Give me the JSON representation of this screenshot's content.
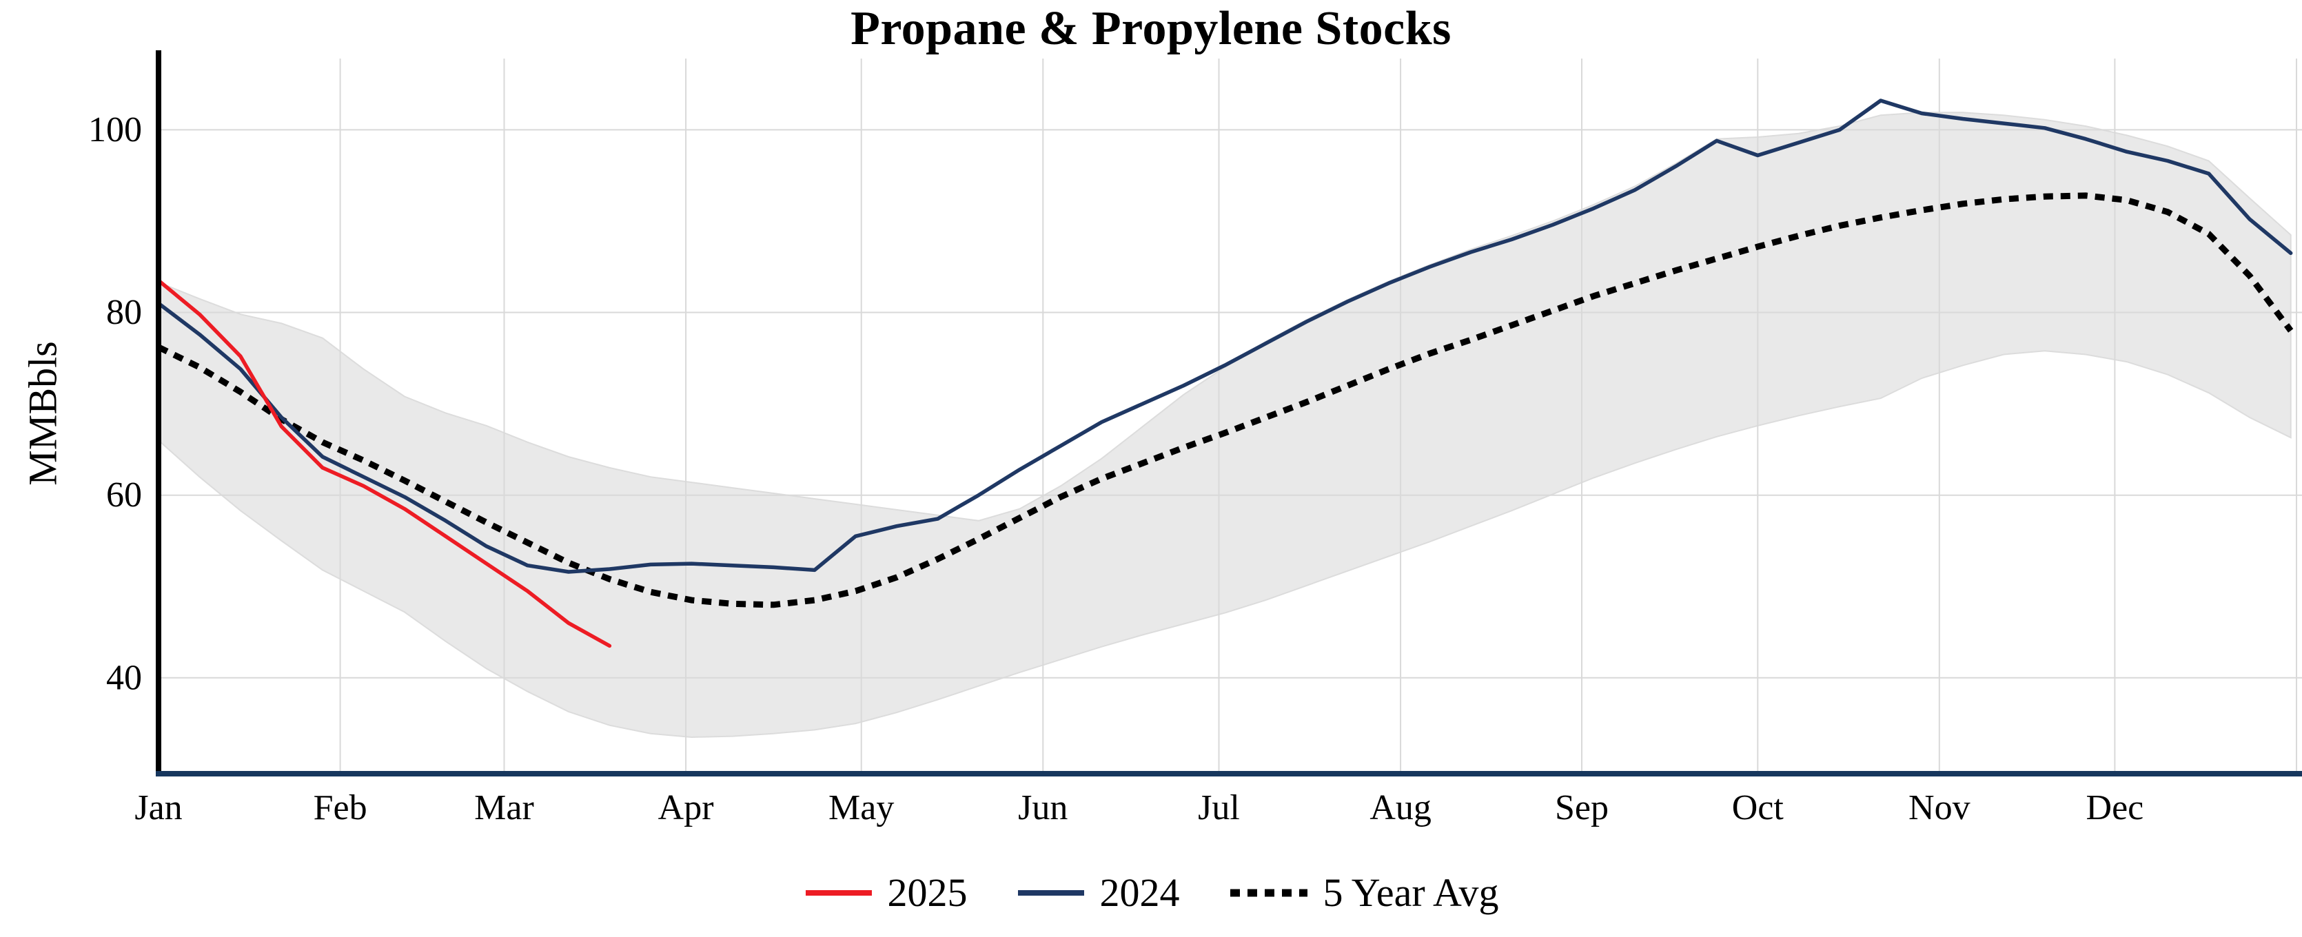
{
  "chart_data": {
    "type": "line",
    "title": "Propane & Propylene Stocks",
    "ylabel": "MMBbls",
    "x_unit": "week_of_year",
    "x_max": 52.14,
    "ylim": [
      29.5,
      107.8
    ],
    "yticks": [
      40,
      60,
      80,
      100
    ],
    "grid_color": "#d9d9d9",
    "axis_colors": {
      "left": "#000000",
      "bottom": "#17375e"
    },
    "x_ticks": [
      {
        "label": "Jan",
        "week": 0
      },
      {
        "label": "Feb",
        "week": 4.43
      },
      {
        "label": "Mar",
        "week": 8.43
      },
      {
        "label": "Apr",
        "week": 12.86
      },
      {
        "label": "May",
        "week": 17.14
      },
      {
        "label": "Jun",
        "week": 21.57
      },
      {
        "label": "Jul",
        "week": 25.86
      },
      {
        "label": "Aug",
        "week": 30.29
      },
      {
        "label": "Sep",
        "week": 34.71
      },
      {
        "label": "Oct",
        "week": 39.0
      },
      {
        "label": "Nov",
        "week": 43.43
      },
      {
        "label": "Dec",
        "week": 47.71
      }
    ],
    "band": {
      "name": "5 Year Range",
      "fill": "#e9e9e9",
      "stroke": "#dcdcdc",
      "upper": [
        83.3,
        81.5,
        79.8,
        78.8,
        77.2,
        73.8,
        70.8,
        69.0,
        67.6,
        65.8,
        64.2,
        63.0,
        62.0,
        61.4,
        60.8,
        60.2,
        59.6,
        59.0,
        58.4,
        57.8,
        57.2,
        58.5,
        61.0,
        64.0,
        67.5,
        71.0,
        74.0,
        76.8,
        79.2,
        81.4,
        83.4,
        85.2,
        86.9,
        88.4,
        90.0,
        91.8,
        93.8,
        96.3,
        99.0,
        99.2,
        99.6,
        100.4,
        101.6,
        101.9,
        101.9,
        101.6,
        101.1,
        100.4,
        99.4,
        98.2,
        96.6,
        92.5,
        88.5
      ],
      "lower": [
        66.0,
        62.0,
        58.3,
        55.0,
        51.8,
        49.5,
        47.2,
        44.0,
        41.0,
        38.5,
        36.3,
        34.8,
        33.9,
        33.5,
        33.6,
        33.9,
        34.3,
        35.0,
        36.2,
        37.6,
        39.1,
        40.6,
        42.0,
        43.4,
        44.7,
        45.9,
        47.1,
        48.5,
        50.1,
        51.7,
        53.3,
        54.9,
        56.6,
        58.3,
        60.1,
        61.9,
        63.5,
        65.0,
        66.4,
        67.6,
        68.7,
        69.7,
        70.6,
        72.8,
        74.2,
        75.4,
        75.8,
        75.4,
        74.6,
        73.2,
        71.2,
        68.5,
        66.3
      ]
    },
    "series": [
      {
        "name": "2025",
        "color": "#ed1c24",
        "width": 5.5,
        "dash": "",
        "values": [
          83.5,
          79.8,
          75.2,
          67.5,
          63.0,
          61.0,
          58.5,
          55.5,
          52.5,
          49.5,
          46.0,
          43.5
        ]
      },
      {
        "name": "2024",
        "color": "#1f3864",
        "width": 5.5,
        "dash": "",
        "values": [
          81.0,
          77.6,
          73.8,
          68.5,
          64.2,
          62.0,
          59.8,
          57.2,
          54.4,
          52.3,
          51.6,
          51.9,
          52.4,
          52.5,
          52.3,
          52.1,
          51.8,
          55.5,
          56.6,
          57.4,
          60.0,
          62.8,
          65.4,
          68.0,
          70.0,
          72.0,
          74.2,
          76.6,
          79.0,
          81.2,
          83.2,
          85.0,
          86.6,
          88.0,
          89.6,
          91.4,
          93.4,
          96.0,
          98.8,
          97.2,
          98.6,
          100.0,
          103.2,
          101.8,
          101.2,
          100.7,
          100.2,
          99.0,
          97.6,
          96.6,
          95.2,
          90.2,
          86.5
        ]
      },
      {
        "name": "5 Year Avg",
        "color": "#000000",
        "width": 9,
        "dash": "14 11",
        "values": [
          76.2,
          74.0,
          71.3,
          68.3,
          65.8,
          63.8,
          61.6,
          59.3,
          57.0,
          54.8,
          52.6,
          50.8,
          49.4,
          48.5,
          48.1,
          48.0,
          48.5,
          49.5,
          51.0,
          53.0,
          55.2,
          57.5,
          59.8,
          61.8,
          63.5,
          65.2,
          66.8,
          68.5,
          70.2,
          72.0,
          73.8,
          75.5,
          77.0,
          78.6,
          80.2,
          81.8,
          83.2,
          84.6,
          85.9,
          87.2,
          88.4,
          89.5,
          90.4,
          91.2,
          91.9,
          92.4,
          92.7,
          92.8,
          92.3,
          91.0,
          88.6,
          84.0,
          78.0
        ]
      }
    ],
    "legend": {
      "entries": [
        "2025",
        "2024",
        "5 Year Avg"
      ],
      "position": "bottom-center"
    }
  }
}
